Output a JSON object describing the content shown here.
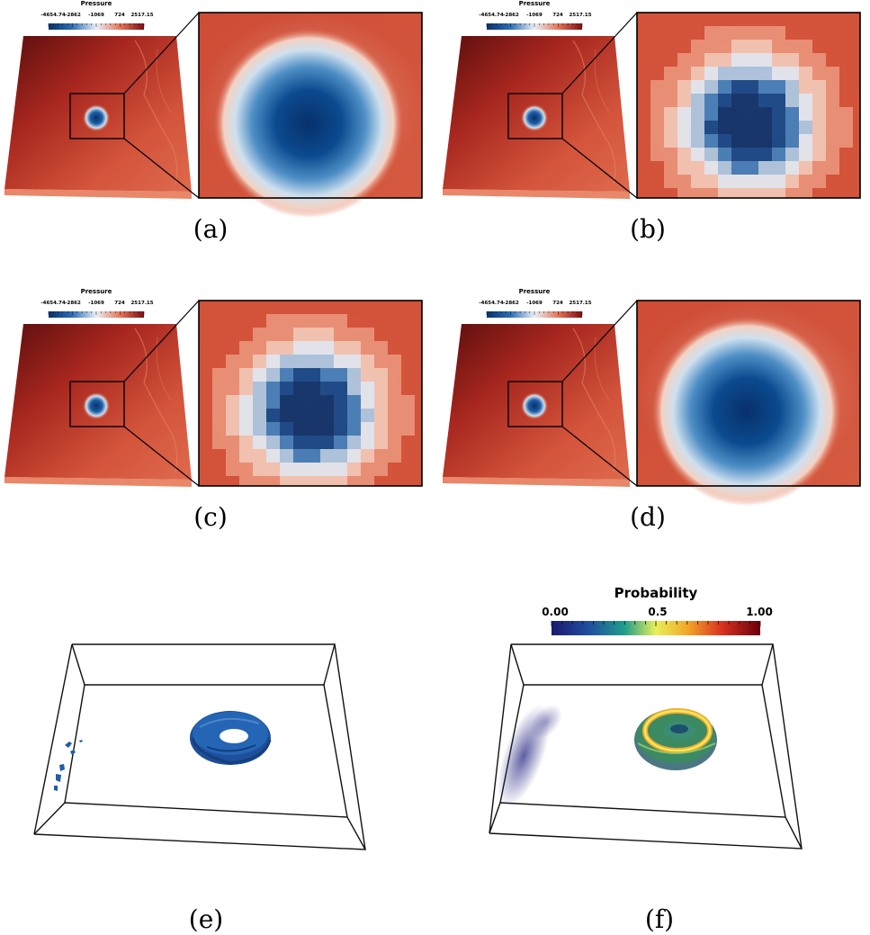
{
  "pressure_panels": [
    {
      "caption": "(a)",
      "colorbar": {
        "title": "Pressure",
        "ticks": [
          "-4654.74",
          "-2862",
          "-1069",
          "724",
          "2517.15"
        ]
      },
      "zoom_style": "smooth"
    },
    {
      "caption": "(b)",
      "colorbar": {
        "title": "Pressure",
        "ticks": [
          "-4654.74",
          "-2862",
          "-1069",
          "724",
          "2517.15"
        ]
      },
      "zoom_style": "blocky"
    },
    {
      "caption": "(c)",
      "colorbar": {
        "title": "Pressure",
        "ticks": [
          "-4654.74",
          "-2862",
          "-1069",
          "724",
          "2517.15"
        ]
      },
      "zoom_style": "blocky"
    },
    {
      "caption": "(d)",
      "colorbar": {
        "title": "Pressure",
        "ticks": [
          "-4654.74",
          "-2862",
          "-1069",
          "724",
          "2517.15"
        ]
      },
      "zoom_style": "smooth"
    }
  ],
  "isosurface_panel": {
    "caption": "(e)",
    "surface_color": "#1f5da8"
  },
  "probability_panel": {
    "caption": "(f)",
    "colorbar": {
      "title": "Probability",
      "ticks": [
        "0.00",
        "0.5",
        "1.00"
      ]
    }
  },
  "colors": {
    "pressure_high": "#c0392b",
    "pressure_low": "#08306b",
    "probability_low": "#1a1a6e",
    "probability_high": "#67000d"
  }
}
